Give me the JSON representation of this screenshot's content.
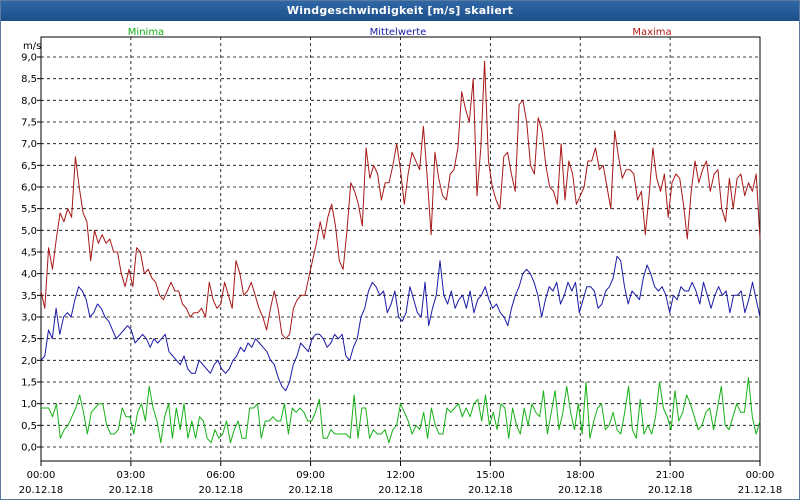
{
  "window": {
    "title": "Windgeschwindigkeit [m/s] skaliert"
  },
  "colors": {
    "min": "#16b016",
    "mean": "#1a1aa8",
    "max": "#a81818",
    "grid": "#000000",
    "title_bar": "#2a609e"
  },
  "chart_data": {
    "type": "line",
    "title": "Windgeschwindigkeit [m/s] skaliert",
    "ylabel": "m/s",
    "xlabel": "",
    "ylim": [
      0,
      9
    ],
    "xlim_hours": [
      0,
      24
    ],
    "grid": true,
    "legend_placement": "top",
    "y_tick_labels": [
      "0,0",
      "0,5",
      "1,0",
      "1,5",
      "2,0",
      "2,5",
      "3,0",
      "3,5",
      "4,0",
      "4,5",
      "5,0",
      "5,5",
      "6,0",
      "6,5",
      "7,0",
      "7,5",
      "8,0",
      "8,5",
      "9,0"
    ],
    "x_ticks": [
      {
        "time": "00:00",
        "date": "20.12.18"
      },
      {
        "time": "03:00",
        "date": "20.12.18"
      },
      {
        "time": "06:00",
        "date": "20.12.18"
      },
      {
        "time": "09:00",
        "date": "20.12.18"
      },
      {
        "time": "12:00",
        "date": "20.12.18"
      },
      {
        "time": "15:00",
        "date": "20.12.18"
      },
      {
        "time": "18:00",
        "date": "20.12.18"
      },
      {
        "time": "21:00",
        "date": "20.12.18"
      },
      {
        "time": "00:00",
        "date": "21.12.18"
      }
    ],
    "series": [
      {
        "name": "Minima",
        "color": "#16b016",
        "values": [
          0.9,
          0.9,
          0.9,
          0.7,
          1.0,
          0.2,
          0.4,
          0.5,
          0.7,
          0.9,
          1.2,
          0.8,
          0.3,
          0.8,
          0.9,
          1.0,
          1.0,
          0.5,
          0.3,
          0.3,
          0.4,
          0.9,
          0.7,
          0.7,
          0.3,
          0.8,
          1.0,
          0.6,
          1.4,
          0.9,
          0.6,
          0.1,
          0.7,
          1.0,
          0.2,
          0.9,
          0.4,
          1.0,
          0.2,
          0.6,
          0.2,
          0.7,
          0.6,
          0.2,
          0.1,
          0.4,
          0.2,
          0.3,
          0.6,
          0.1,
          0.4,
          0.6,
          0.2,
          0.2,
          0.9,
          0.9,
          1.0,
          0.2,
          0.6,
          0.6,
          0.7,
          0.6,
          0.6,
          1.0,
          0.3,
          0.9,
          0.8,
          0.9,
          0.8,
          0.6,
          0.6,
          0.8,
          1.1,
          0.2,
          0.2,
          0.4,
          0.3,
          0.3,
          0.3,
          0.3,
          0.2,
          1.2,
          0.2,
          0.9,
          0.9,
          0.2,
          0.4,
          0.3,
          0.3,
          0.4,
          0.1,
          0.4,
          0.5,
          1.0,
          0.8,
          0.6,
          0.3,
          0.5,
          0.4,
          0.8,
          0.2,
          0.9,
          0.5,
          0.3,
          0.3,
          0.9,
          0.8,
          0.9,
          1.0,
          0.7,
          0.9,
          0.7,
          1.0,
          1.1,
          0.6,
          1.2,
          0.5,
          0.8,
          0.4,
          1.0,
          0.9,
          0.2,
          0.9,
          0.5,
          0.3,
          0.9,
          0.5,
          1.0,
          0.8,
          0.7,
          1.3,
          0.3,
          0.8,
          1.3,
          0.4,
          0.8,
          1.4,
          0.8,
          0.4,
          1.0,
          0.3,
          1.5,
          0.2,
          0.6,
          0.9,
          1.0,
          0.4,
          0.5,
          0.8,
          0.4,
          0.3,
          0.8,
          1.4,
          0.4,
          0.2,
          1.1,
          0.3,
          0.5,
          0.3,
          0.7,
          1.5,
          0.9,
          0.7,
          0.4,
          1.3,
          0.6,
          0.8,
          1.2,
          1.0,
          0.7,
          0.4,
          0.5,
          0.8,
          0.9,
          0.4,
          0.9,
          1.4,
          0.5,
          0.4,
          0.7,
          1.0,
          0.8,
          0.8,
          1.6,
          0.7,
          0.3,
          0.6
        ]
      },
      {
        "name": "Mittelwerte",
        "color": "#1a1aa8",
        "values": [
          2.0,
          2.1,
          2.7,
          2.5,
          3.2,
          2.6,
          3.0,
          3.1,
          3.0,
          3.4,
          3.7,
          3.6,
          3.4,
          3.0,
          3.1,
          3.3,
          3.2,
          3.0,
          2.9,
          2.7,
          2.5,
          2.6,
          2.7,
          2.8,
          2.7,
          2.4,
          2.5,
          2.6,
          2.5,
          2.3,
          2.5,
          2.4,
          2.5,
          2.6,
          2.2,
          2.1,
          2.0,
          1.9,
          2.1,
          1.8,
          1.7,
          1.7,
          2.0,
          1.9,
          1.8,
          1.7,
          1.9,
          2.0,
          1.8,
          1.7,
          1.8,
          2.0,
          2.1,
          2.3,
          2.2,
          2.4,
          2.3,
          2.5,
          2.4,
          2.3,
          2.2,
          2.0,
          1.9,
          1.6,
          1.4,
          1.3,
          1.5,
          1.9,
          2.1,
          2.4,
          2.3,
          2.2,
          2.5,
          2.6,
          2.6,
          2.5,
          2.3,
          2.4,
          2.6,
          2.5,
          2.6,
          2.1,
          2.0,
          2.3,
          2.5,
          3.0,
          3.2,
          3.6,
          3.8,
          3.7,
          3.5,
          3.6,
          3.1,
          3.3,
          3.6,
          3.0,
          2.9,
          3.1,
          3.7,
          3.4,
          3.1,
          3.0,
          3.8,
          2.8,
          3.2,
          3.5,
          4.3,
          3.5,
          3.3,
          3.6,
          3.2,
          3.4,
          3.5,
          3.2,
          3.6,
          3.1,
          3.4,
          3.5,
          3.7,
          3.4,
          3.2,
          3.3,
          3.1,
          3.0,
          2.8,
          3.2,
          3.5,
          3.7,
          4.0,
          4.1,
          4.0,
          3.8,
          3.5,
          3.0,
          3.4,
          3.7,
          3.6,
          3.8,
          3.3,
          3.5,
          3.8,
          3.6,
          3.8,
          3.1,
          3.4,
          3.7,
          3.7,
          3.6,
          3.2,
          3.3,
          3.6,
          3.7,
          3.9,
          4.4,
          4.3,
          3.7,
          3.3,
          3.6,
          3.5,
          3.4,
          3.9,
          4.2,
          4.0,
          3.7,
          3.6,
          3.7,
          3.5,
          3.1,
          3.5,
          3.4,
          3.7,
          3.6,
          3.6,
          3.8,
          3.6,
          3.3,
          3.8,
          3.5,
          3.2,
          3.5,
          3.7,
          3.5,
          3.6,
          3.1,
          3.5,
          3.5,
          3.6,
          3.1,
          3.4,
          3.8,
          3.4,
          3.0
        ]
      },
      {
        "name": "Maxima",
        "color": "#a81818",
        "values": [
          3.6,
          3.2,
          4.6,
          4.1,
          4.8,
          5.4,
          5.2,
          5.5,
          5.3,
          6.7,
          6.0,
          5.4,
          5.2,
          4.3,
          5.0,
          4.7,
          4.9,
          4.7,
          4.8,
          4.5,
          4.5,
          4.0,
          3.7,
          4.1,
          3.7,
          4.6,
          4.5,
          4.0,
          4.1,
          3.9,
          3.8,
          3.5,
          3.4,
          3.6,
          3.8,
          3.6,
          3.6,
          3.3,
          3.2,
          3.0,
          3.1,
          3.1,
          3.2,
          3.0,
          3.8,
          3.4,
          3.2,
          3.3,
          3.8,
          3.5,
          3.2,
          4.3,
          4.0,
          3.5,
          3.6,
          3.8,
          3.5,
          3.2,
          3.0,
          2.7,
          3.2,
          3.6,
          3.2,
          2.6,
          2.5,
          2.6,
          3.2,
          3.4,
          3.5,
          3.5,
          3.9,
          4.3,
          4.7,
          5.2,
          4.8,
          5.3,
          5.6,
          5.1,
          4.3,
          4.1,
          5.0,
          6.1,
          5.9,
          5.6,
          5.1,
          6.9,
          6.2,
          6.5,
          6.3,
          5.7,
          6.1,
          6.1,
          6.5,
          7.0,
          6.4,
          5.6,
          6.3,
          6.8,
          6.6,
          6.4,
          7.4,
          6.2,
          4.9,
          6.8,
          6.2,
          5.8,
          5.7,
          6.3,
          6.4,
          6.9,
          8.2,
          7.8,
          7.5,
          8.5,
          5.8,
          6.9,
          8.9,
          6.6,
          6.0,
          5.7,
          5.5,
          6.7,
          6.8,
          6.3,
          5.9,
          7.9,
          8.0,
          7.5,
          6.5,
          6.3,
          7.6,
          7.3,
          6.5,
          6.0,
          5.9,
          5.6,
          7.0,
          5.7,
          6.6,
          6.3,
          5.6,
          5.8,
          6.0,
          6.6,
          6.6,
          6.9,
          6.4,
          6.5,
          6.0,
          5.5,
          7.3,
          6.7,
          6.2,
          6.4,
          6.4,
          6.3,
          5.7,
          5.9,
          4.9,
          5.8,
          6.9,
          6.2,
          5.9,
          6.3,
          5.3,
          6.1,
          6.3,
          6.2,
          5.6,
          4.8,
          5.9,
          6.6,
          6.1,
          6.4,
          6.6,
          5.9,
          6.3,
          6.4,
          5.5,
          5.2,
          6.2,
          5.5,
          6.2,
          6.3,
          5.8,
          6.1,
          5.9,
          6.3,
          4.8
        ]
      }
    ]
  }
}
